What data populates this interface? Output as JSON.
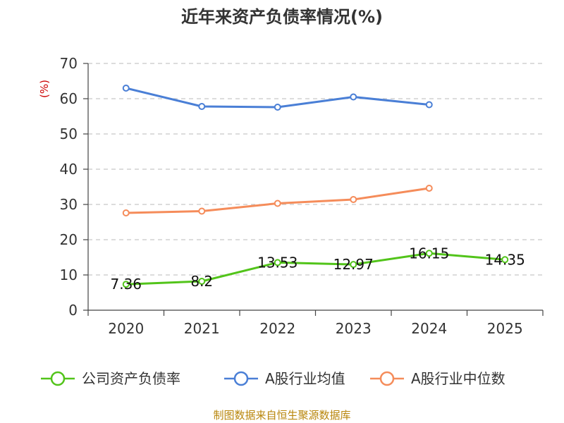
{
  "chart_data": {
    "type": "line",
    "title": "近年来资产负债率情况(%)",
    "unit_label": "(%)",
    "categories": [
      "2020",
      "2021",
      "2022",
      "2023",
      "2024",
      "2025"
    ],
    "y_ticks": [
      "0",
      "10",
      "20",
      "30",
      "40",
      "50",
      "60",
      "70"
    ],
    "ylim": [
      0,
      70
    ],
    "grid": true,
    "legend_position": "bottom",
    "series": [
      {
        "name": "公司资产负债率",
        "color": "#52c41a",
        "values": [
          7.36,
          8.2,
          13.53,
          12.97,
          16.15,
          14.35
        ],
        "labels": [
          "7.36",
          "8.2",
          "13.53",
          "12.97",
          "16.15",
          "14.35"
        ]
      },
      {
        "name": "A股行业均值",
        "color": "#4a7fd6",
        "values": [
          63.0,
          57.8,
          57.6,
          60.5,
          58.3,
          null
        ]
      },
      {
        "name": "A股行业中位数",
        "color": "#f58c5a",
        "values": [
          27.6,
          28.1,
          30.3,
          31.4,
          34.6,
          null
        ]
      }
    ]
  },
  "footer": {
    "source": "制图数据来自恒生聚源数据库"
  }
}
